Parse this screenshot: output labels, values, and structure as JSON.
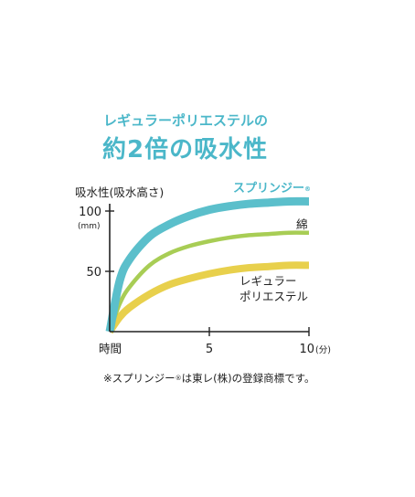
{
  "heading": {
    "sub": "レギュラーポリエステルの",
    "main": "約2倍の吸水性"
  },
  "footnote": {
    "prefix": "※スプリンジー",
    "reg": "®",
    "suffix": "は東レ(株)の登録商標です。"
  },
  "chart_data": {
    "type": "line",
    "ylabel": "吸水性(吸水高さ)",
    "yunit": "(mm)",
    "xlabel_start": "時間",
    "x_ticks": [
      "5",
      "10"
    ],
    "x_unit": "(分)",
    "y_ticks": [
      "100",
      "50"
    ],
    "xlim": [
      0,
      10
    ],
    "ylim": [
      0,
      110
    ],
    "grid": false,
    "series": [
      {
        "name": "スプリンジー",
        "name_mark": "®",
        "color": "#5bbfcb",
        "x": [
          0,
          0.5,
          1,
          2,
          3,
          4,
          5,
          6,
          7,
          8,
          9,
          10
        ],
        "values": [
          0,
          42,
          60,
          79,
          89,
          96,
          101,
          104,
          106,
          107,
          108,
          108
        ]
      },
      {
        "name": "綿",
        "color": "#a8cd55",
        "x": [
          0,
          0.5,
          1,
          2,
          3,
          4,
          5,
          6,
          7,
          8,
          9,
          10
        ],
        "values": [
          0,
          23,
          37,
          55,
          65,
          71,
          75,
          78,
          80,
          81,
          82,
          82
        ]
      },
      {
        "name": "レギュラー\nポリエステル",
        "color": "#e8d04c",
        "x": [
          0,
          0.5,
          1,
          2,
          3,
          4,
          5,
          6,
          7,
          8,
          9,
          10
        ],
        "values": [
          0,
          12,
          20,
          31,
          39,
          44,
          48,
          51,
          53,
          54,
          55,
          55
        ]
      }
    ]
  }
}
